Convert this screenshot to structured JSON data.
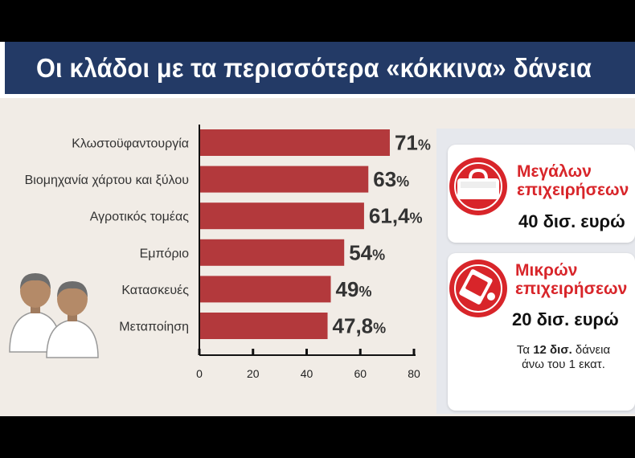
{
  "title": "Οι κλάδοι με τα περισσότερα «κόκκινα» δάνεια",
  "colors": {
    "navy": "#233a66",
    "bar": "#b3393c",
    "accent_red": "#d8252a",
    "panel": "#f1ece6"
  },
  "chart_data": {
    "type": "bar",
    "orientation": "horizontal",
    "categories": [
      "Κλωστοϋφαντουργία",
      "Βιομηχανία χάρτου και ξύλου",
      "Αγροτικός τομέας",
      "Εμπόριο",
      "Κατασκευές",
      "Μεταποίηση"
    ],
    "values": [
      71,
      63,
      61.4,
      54,
      49,
      47.8
    ],
    "value_labels": [
      "71",
      "63",
      "61,4",
      "54",
      "49",
      "47,8"
    ],
    "unit": "%",
    "xlim": [
      0,
      80
    ],
    "ticks": [
      0,
      20,
      40,
      60,
      80
    ],
    "tick_labels": [
      "0",
      "20",
      "40",
      "60",
      "80"
    ],
    "grid": false
  },
  "cards": [
    {
      "title_line1": "Μεγάλων",
      "title_line2": "επιχειρήσεων",
      "amount": "40 δισ. ευρώ",
      "icon": "red-briefcase-icon"
    },
    {
      "title_line1": "Μικρών",
      "title_line2": "επιχειρήσεων",
      "amount": "20 δισ. ευρώ",
      "icon": "red-wallet-icon",
      "note_prefix": "Τα ",
      "note_bold": "12 δισ.",
      "note_suffix": " δάνεια",
      "note_line2": "άνω του 1 εκατ."
    }
  ],
  "illustration": "businessmen-icon"
}
